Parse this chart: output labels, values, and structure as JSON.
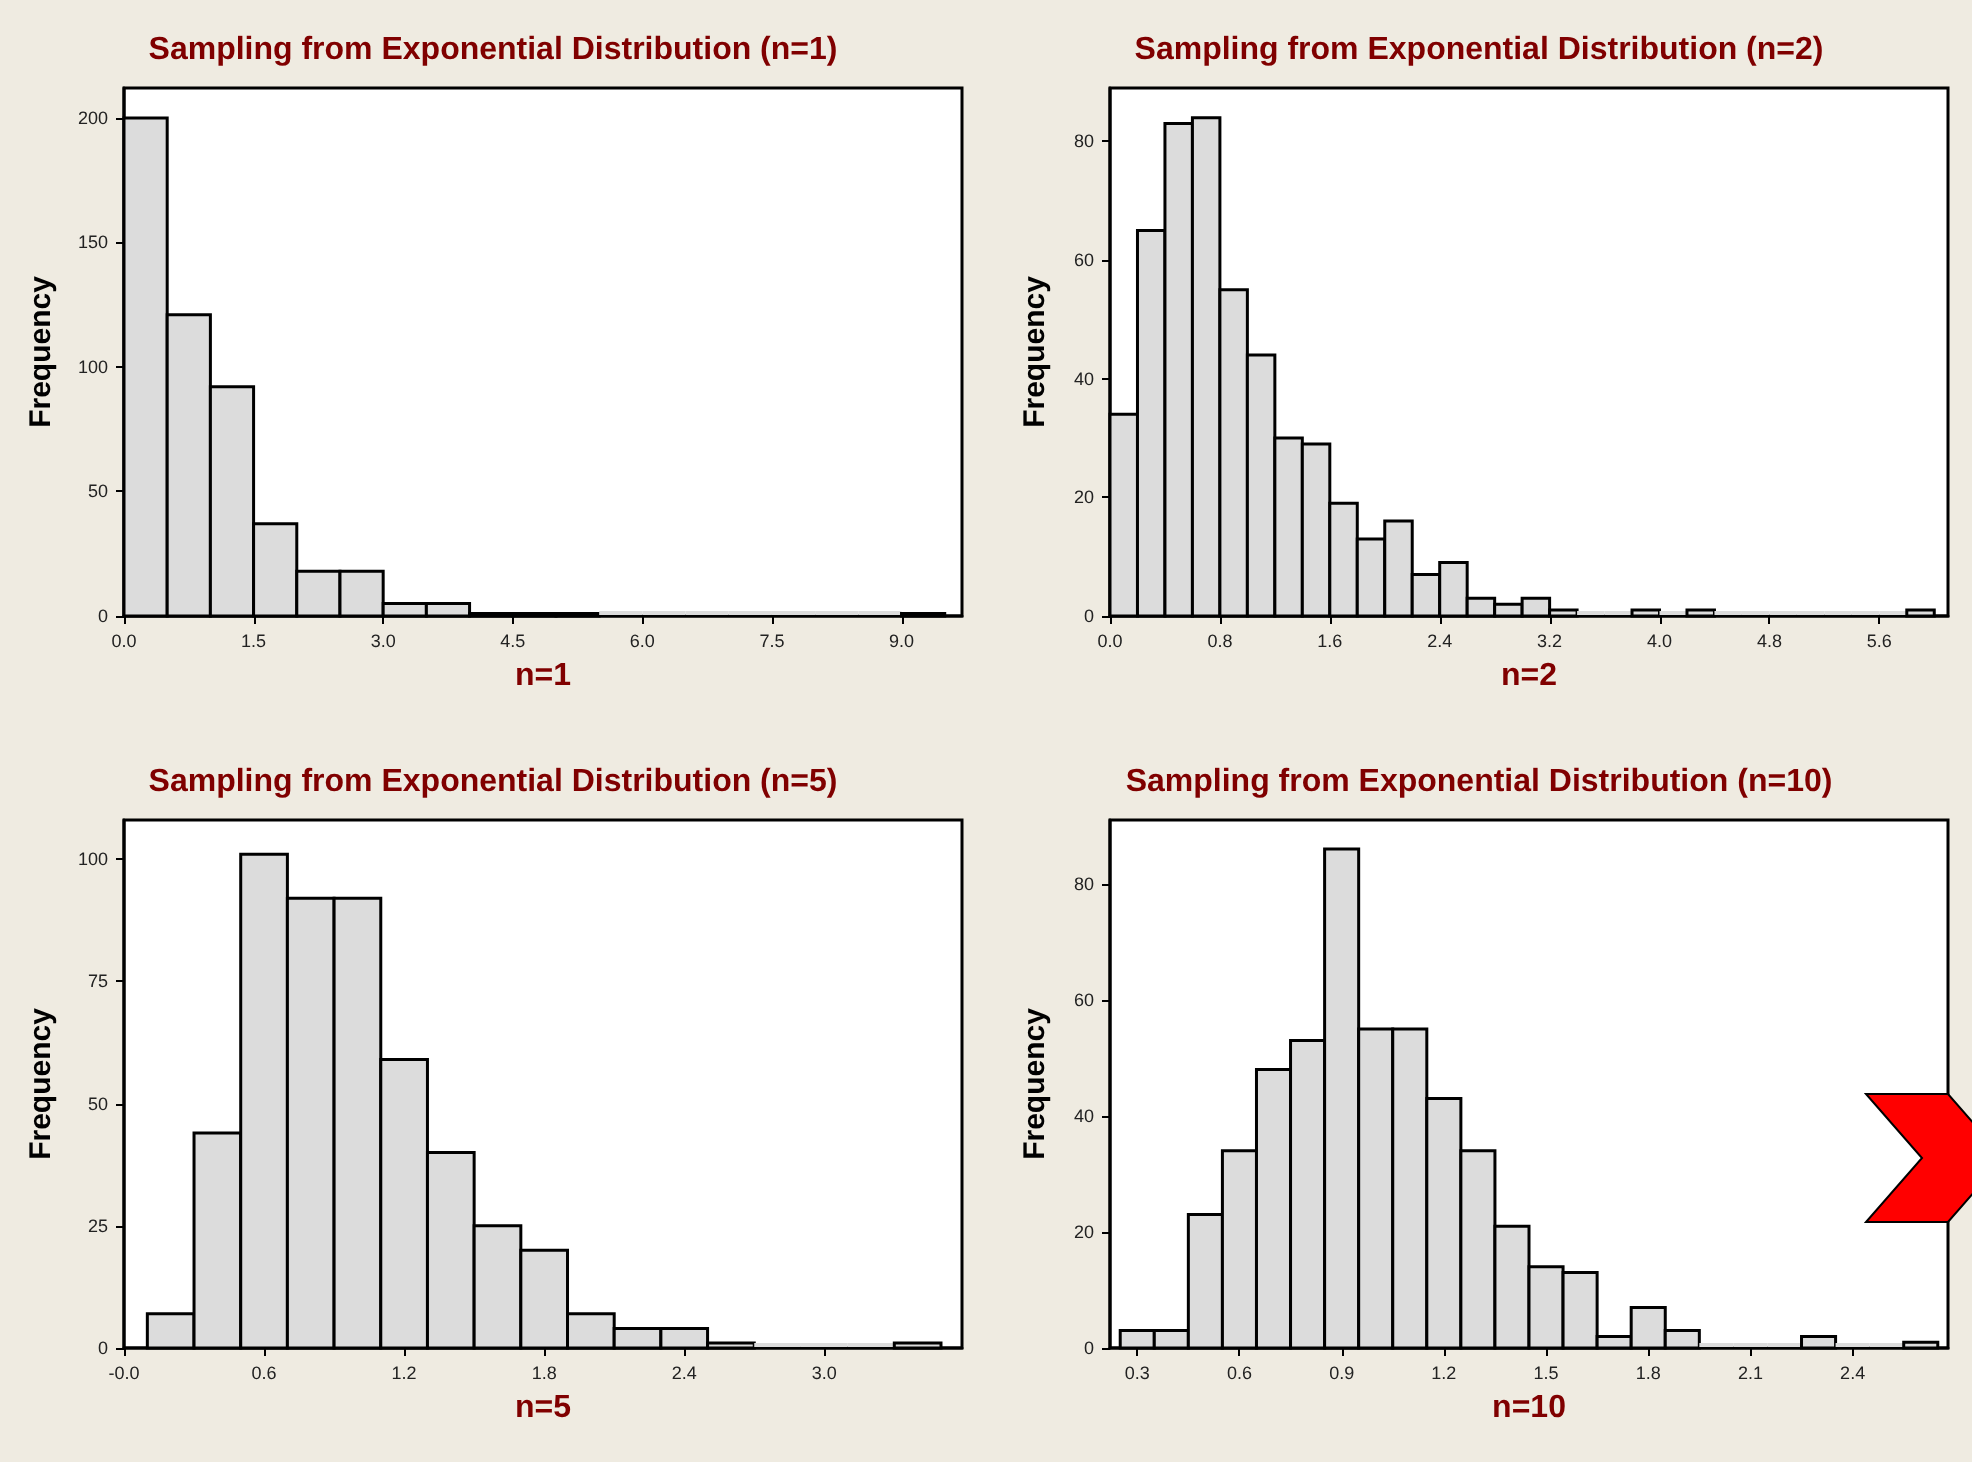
{
  "chart_data": [
    {
      "type": "histogram",
      "title": "Sampling from Exponential Distribution (n=1)",
      "xlabel": "n=1",
      "ylabel": "Frequency",
      "color": "#dcdcdc",
      "bins": [
        0,
        0.5,
        1,
        1.5,
        2,
        2.5,
        3,
        3.5,
        4,
        4.5,
        5,
        5.5,
        6,
        6.5,
        7,
        7.5,
        8,
        8.5,
        9,
        9.5
      ],
      "values": [
        200,
        121,
        92,
        37,
        18,
        18,
        5,
        5,
        1,
        1,
        1,
        0,
        0,
        0,
        0,
        0,
        0,
        0,
        1
      ],
      "xlim": [
        0,
        9.7
      ],
      "xticks": [
        {
          "value": 0,
          "label": "0.0"
        },
        1.5,
        {
          "value": 3,
          "label": "3.0"
        },
        4.5,
        {
          "value": 6,
          "label": "6.0"
        },
        7.5,
        {
          "value": 9,
          "label": "9.0"
        }
      ],
      "ylim": [
        0,
        212
      ],
      "yticks": [
        0,
        50,
        100,
        150,
        200
      ]
    },
    {
      "type": "histogram",
      "title": "Sampling from Exponential Distribution (n=2)",
      "xlabel": "n=2",
      "ylabel": "Frequency",
      "color": "#dcdcdc",
      "bins": [
        0,
        0.2,
        0.4,
        0.6,
        0.8,
        1,
        1.2,
        1.4,
        1.6,
        1.8,
        2,
        2.2,
        2.4,
        2.6,
        2.8,
        3,
        3.2,
        3.4,
        3.6,
        3.8,
        4,
        4.2,
        4.4,
        4.6,
        4.8,
        5,
        5.2,
        5.4,
        5.6,
        5.8,
        6
      ],
      "values": [
        34,
        65,
        83,
        84,
        55,
        44,
        30,
        29,
        19,
        13,
        16,
        7,
        9,
        3,
        2,
        3,
        1,
        0,
        0,
        1,
        0,
        1,
        0,
        0,
        0,
        0,
        0,
        0,
        0,
        1
      ],
      "xlim": [
        0,
        6.1
      ],
      "xticks": [
        {
          "value": 0,
          "label": "0.0"
        },
        0.8,
        1.6,
        2.4,
        3.2,
        {
          "value": 4,
          "label": "4.0"
        },
        4.8,
        5.6
      ],
      "ylim": [
        0,
        89
      ],
      "yticks": [
        0,
        20,
        40,
        60,
        80
      ]
    },
    {
      "type": "histogram",
      "title": "Sampling from Exponential Distribution (n=5)",
      "xlabel": "n=5",
      "ylabel": "Frequency",
      "color": "#dcdcdc",
      "bins": [
        0.1,
        0.3,
        0.5,
        0.7,
        0.9,
        1.1,
        1.3,
        1.5,
        1.7,
        1.9,
        2.1,
        2.3,
        2.5,
        2.7,
        2.9,
        3.1,
        3.3,
        3.5
      ],
      "values": [
        7,
        44,
        101,
        92,
        92,
        59,
        40,
        25,
        20,
        7,
        4,
        4,
        1,
        0,
        0,
        0,
        1
      ],
      "xlim": [
        0,
        3.59
      ],
      "xticks": [
        {
          "value": 0,
          "label": "-0.0"
        },
        0.6,
        1.2,
        1.8,
        2.4,
        {
          "value": 3,
          "label": "3.0"
        }
      ],
      "ylim": [
        0,
        108
      ],
      "yticks": [
        0,
        25,
        50,
        75,
        100
      ]
    },
    {
      "type": "histogram",
      "title": "Sampling from Exponential Distribution (n=10)",
      "xlabel": "n=10",
      "ylabel": "Frequency",
      "color": "#dcdcdc",
      "bins": [
        0.25,
        0.35,
        0.45,
        0.55,
        0.65,
        0.75,
        0.85,
        0.95,
        1.05,
        1.15,
        1.25,
        1.35,
        1.45,
        1.55,
        1.65,
        1.75,
        1.85,
        1.95,
        2.05,
        2.15,
        2.25,
        2.35,
        2.45,
        2.55,
        2.65
      ],
      "values": [
        3,
        3,
        23,
        34,
        48,
        53,
        86,
        55,
        55,
        43,
        34,
        21,
        14,
        13,
        2,
        7,
        3,
        0,
        0,
        0,
        2,
        0,
        0,
        1
      ],
      "xlim": [
        0.22,
        2.68
      ],
      "xticks": [
        0.3,
        0.6,
        0.9,
        1.2,
        1.5,
        1.8,
        2.1,
        2.4
      ],
      "ylim": [
        0,
        91
      ],
      "yticks": [
        0,
        20,
        40,
        60,
        80
      ]
    }
  ]
}
